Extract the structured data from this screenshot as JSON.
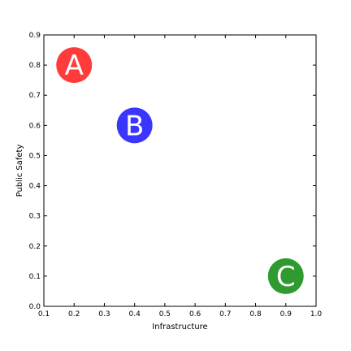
{
  "chart_data": {
    "type": "scatter",
    "xlabel": "Infrastructure",
    "ylabel": "Public Safety",
    "xlim": [
      0.1,
      1.0
    ],
    "ylim": [
      0.0,
      0.9
    ],
    "xticks": [
      "0.1",
      "0.2",
      "0.3",
      "0.4",
      "0.5",
      "0.6",
      "0.7",
      "0.8",
      "0.9",
      "1.0"
    ],
    "yticks": [
      "0.0",
      "0.1",
      "0.2",
      "0.3",
      "0.4",
      "0.5",
      "0.6",
      "0.7",
      "0.8",
      "0.9"
    ],
    "grid": false,
    "points": [
      {
        "label": "A",
        "x": 0.2,
        "y": 0.8,
        "color": "#ff3b3b"
      },
      {
        "label": "B",
        "x": 0.4,
        "y": 0.6,
        "color": "#3a36ff"
      },
      {
        "label": "C",
        "x": 0.9,
        "y": 0.1,
        "color": "#2f9a2f"
      }
    ]
  }
}
